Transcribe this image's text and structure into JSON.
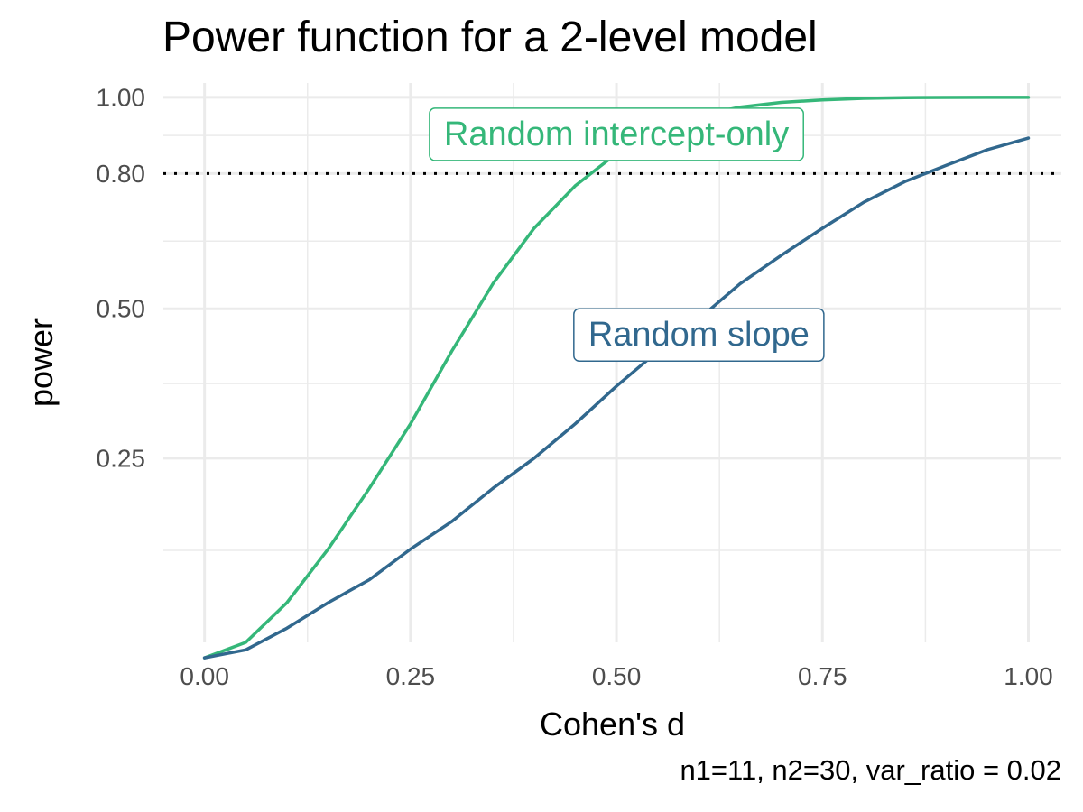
{
  "title": "Power function for a 2-level model",
  "caption": "n1=11, n2=30, var_ratio = 0.02",
  "chart_data": {
    "type": "line",
    "title": "Power function for a 2-level model",
    "xlabel": "Cohen's d",
    "ylabel": "power",
    "caption": "n1=11, n2=30, var_ratio = 0.02",
    "xlim": [
      -0.05,
      1.04
    ],
    "ylim": [
      0.06,
      1.04
    ],
    "x_scale": "linear",
    "y_scale": "sqrt",
    "x_ticks": [
      0,
      0.25,
      0.5,
      0.75,
      1.0
    ],
    "x_tick_labels": [
      "0.00",
      "0.25",
      "0.50",
      "0.75",
      "1.00"
    ],
    "y_ticks": [
      0.25,
      0.5,
      0.8,
      1.0
    ],
    "y_tick_labels": [
      "0.25",
      "0.50",
      "0.80",
      "1.00"
    ],
    "grid": true,
    "reference_line": {
      "y": 0.8,
      "style": "dotted",
      "color": "#000000"
    },
    "series": [
      {
        "name": "Random intercept-only",
        "color": "#35b779",
        "x": [
          0,
          0.05,
          0.1,
          0.15,
          0.2,
          0.25,
          0.3,
          0.35,
          0.4,
          0.45,
          0.5,
          0.55,
          0.6,
          0.65,
          0.7,
          0.75,
          0.8,
          0.85,
          0.9,
          0.95,
          1.0
        ],
        "y": [
          0.05,
          0.06,
          0.09,
          0.14,
          0.21,
          0.3,
          0.42,
          0.55,
          0.67,
          0.77,
          0.85,
          0.91,
          0.95,
          0.973,
          0.986,
          0.993,
          0.997,
          0.999,
          0.9995,
          0.9998,
          0.9999
        ]
      },
      {
        "name": "Random slope",
        "color": "#31688e",
        "x": [
          0,
          0.05,
          0.1,
          0.15,
          0.2,
          0.25,
          0.3,
          0.35,
          0.4,
          0.45,
          0.5,
          0.55,
          0.6,
          0.65,
          0.7,
          0.75,
          0.8,
          0.85,
          0.9,
          0.95,
          1.0
        ],
        "y": [
          0.05,
          0.055,
          0.07,
          0.09,
          0.11,
          0.14,
          0.17,
          0.21,
          0.25,
          0.3,
          0.36,
          0.42,
          0.48,
          0.55,
          0.61,
          0.67,
          0.73,
          0.78,
          0.82,
          0.86,
          0.89
        ]
      }
    ],
    "annotations": [
      {
        "text": "Random intercept-only",
        "x": 0.5,
        "y": 0.9,
        "color": "#35b779"
      },
      {
        "text": "Random slope",
        "x": 0.6,
        "y": 0.45,
        "color": "#31688e"
      }
    ]
  }
}
